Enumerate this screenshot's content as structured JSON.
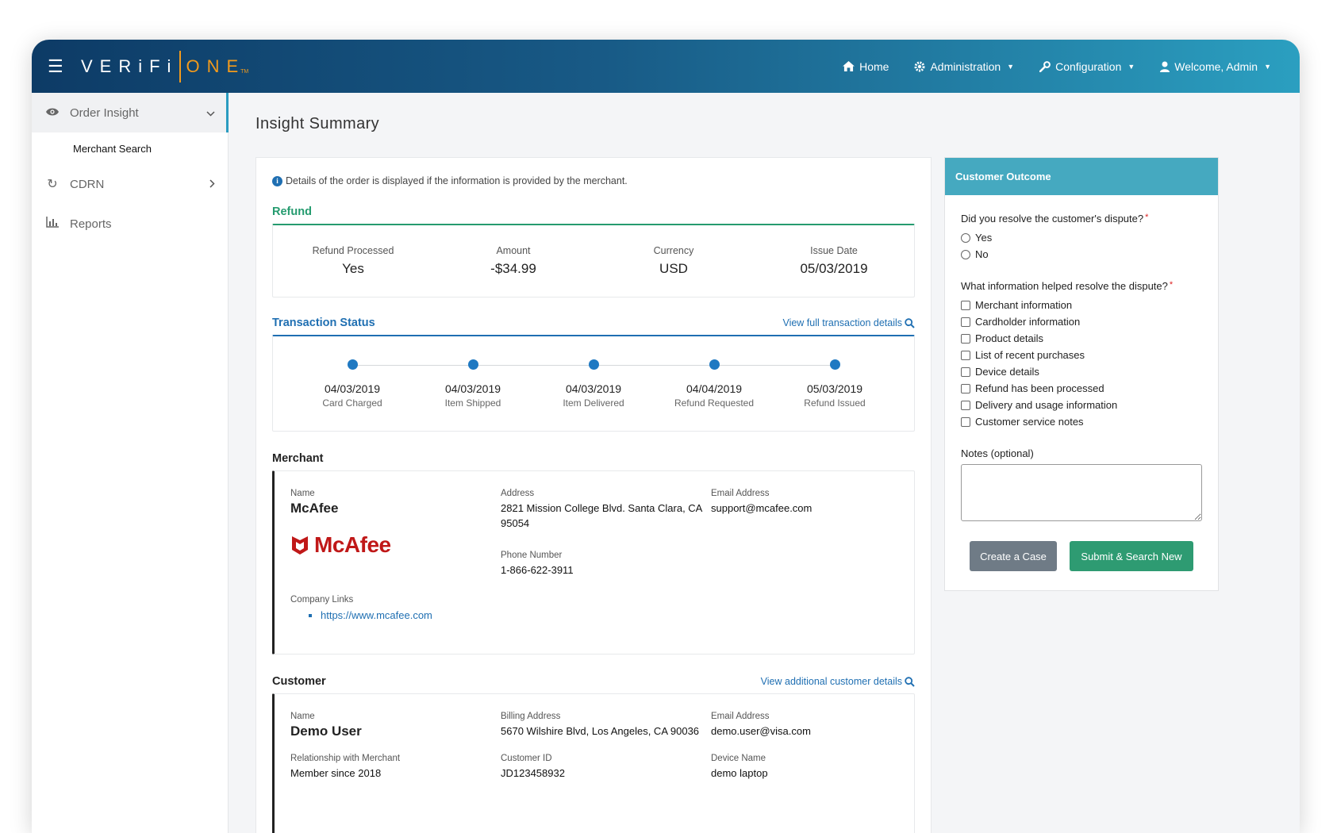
{
  "header": {
    "logo_left": "VERiFi",
    "logo_right": "ONE",
    "logo_tm": "TM",
    "nav": [
      {
        "label": "Home",
        "icon": "home-icon"
      },
      {
        "label": "Administration",
        "icon": "gear-icon"
      },
      {
        "label": "Configuration",
        "icon": "wrench-icon"
      },
      {
        "label": "Welcome, Admin",
        "icon": "user-icon"
      }
    ]
  },
  "sidebar": {
    "items": [
      {
        "label": "Order Insight",
        "icon": "eye-icon",
        "expanded": true,
        "sub": [
          "Merchant Search"
        ]
      },
      {
        "label": "CDRN",
        "icon": "refresh-icon"
      },
      {
        "label": "Reports",
        "icon": "bar-chart-icon"
      }
    ]
  },
  "page": {
    "title": "Insight Summary",
    "info": "Details of the order is displayed if the information is provided by the merchant."
  },
  "refund": {
    "title": "Refund",
    "fields": [
      {
        "label": "Refund Processed",
        "value": "Yes"
      },
      {
        "label": "Amount",
        "value": "-$34.99"
      },
      {
        "label": "Currency",
        "value": "USD"
      },
      {
        "label": "Issue Date",
        "value": "05/03/2019"
      }
    ]
  },
  "transaction": {
    "title": "Transaction Status",
    "link": "View full transaction details",
    "steps": [
      {
        "date": "04/03/2019",
        "label": "Card Charged"
      },
      {
        "date": "04/03/2019",
        "label": "Item Shipped"
      },
      {
        "date": "04/03/2019",
        "label": "Item Delivered"
      },
      {
        "date": "04/04/2019",
        "label": "Refund Requested"
      },
      {
        "date": "05/03/2019",
        "label": "Refund Issued"
      }
    ]
  },
  "merchant": {
    "title": "Merchant",
    "name_label": "Name",
    "name": "McAfee",
    "address_label": "Address",
    "address": "2821 Mission College Blvd. Santa Clara, CA 95054",
    "email_label": "Email Address",
    "email": "support@mcafee.com",
    "logo_text": "McAfee",
    "phone_label": "Phone Number",
    "phone": "1-866-622-3911",
    "links_label": "Company Links",
    "links": [
      "https://www.mcafee.com"
    ]
  },
  "customer": {
    "title": "Customer",
    "link": "View additional customer details",
    "name_label": "Name",
    "name": "Demo User",
    "billing_label": "Billing Address",
    "billing": "5670 Wilshire Blvd, Los Angeles, CA 90036",
    "email_label": "Email Address",
    "email": "demo.user@visa.com",
    "relationship_label": "Relationship with Merchant",
    "relationship": "Member since 2018",
    "customer_id_label": "Customer ID",
    "customer_id": "JD123458932",
    "device_label": "Device Name",
    "device": "demo laptop"
  },
  "outcome": {
    "title": "Customer Outcome",
    "q1": "Did you resolve the customer's dispute?",
    "q1_options": [
      "Yes",
      "No"
    ],
    "q2": "What information helped resolve the dispute?",
    "q2_options": [
      "Merchant information",
      "Cardholder information",
      "Product details",
      "List of recent purchases",
      "Device details",
      "Refund has been processed",
      "Delivery and usage information",
      "Customer service notes"
    ],
    "notes_label": "Notes (optional)",
    "notes_value": "",
    "create_case": "Create a Case",
    "submit": "Submit & Search New"
  },
  "colors": {
    "refund_accent": "#259b6f",
    "transaction_accent": "#1f6fb2",
    "outcome_header": "#45a9c0",
    "submit_button": "#2e9b72",
    "case_button": "#6f7b86"
  }
}
